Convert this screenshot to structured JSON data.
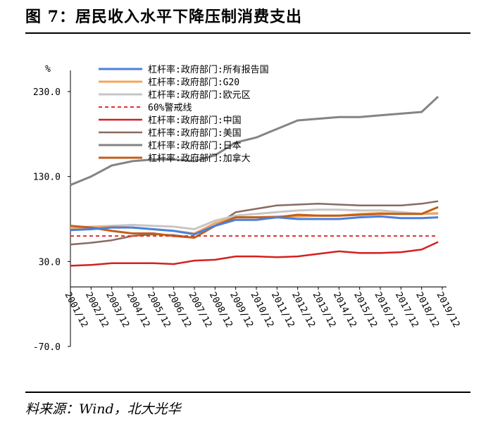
{
  "figure": {
    "title": "图 7：居民收入水平下降压制消费支出",
    "source": "料来源：Wind，北大光华"
  },
  "chart_data": {
    "type": "line",
    "ylabel": "%",
    "ylim": [
      -70,
      230
    ],
    "yticks": [
      "230.0",
      "130.0",
      "30.0",
      "-70.0"
    ],
    "ytick_values": [
      230,
      130,
      30,
      -70
    ],
    "xticks": [
      "2001/12",
      "2002/12",
      "2003/12",
      "2004/12",
      "2005/12",
      "2006/12",
      "2007/12",
      "2008/12",
      "2009/12",
      "2010/12",
      "2011/12",
      "2012/12",
      "2013/12",
      "2014/12",
      "2015/12",
      "2016/12",
      "2017/12",
      "2018/12",
      "2019/12"
    ],
    "x": [
      2001.95,
      2002.95,
      2003.95,
      2004.95,
      2005.95,
      2006.95,
      2007.95,
      2008.95,
      2009.95,
      2010.95,
      2011.95,
      2012.95,
      2013.95,
      2014.95,
      2015.95,
      2016.95,
      2017.95,
      2018.95,
      2019.95
    ],
    "grid": false,
    "legend_position": "top-left",
    "series": [
      {
        "name": "杠杆率:政府部门:所有报告国",
        "color": "#4a7fe0",
        "width": 3,
        "dash": "",
        "endx": 2019.75,
        "values": [
          67,
          68,
          70,
          70,
          68,
          66,
          62,
          72,
          79,
          79,
          82,
          80,
          80,
          80,
          82,
          83,
          81,
          81,
          82
        ]
      },
      {
        "name": "杠杆率:政府部门:G20",
        "color": "#f5a55a",
        "width": 3,
        "dash": "",
        "endx": 2019.75,
        "values": [
          68,
          70,
          71,
          70,
          68,
          66,
          63,
          75,
          82,
          82,
          83,
          83,
          84,
          84,
          86,
          87,
          86,
          86,
          87
        ]
      },
      {
        "name": "杠杆率:政府部门:欧元区",
        "color": "#c6c6c6",
        "width": 3,
        "dash": "",
        "endx": 2019.75,
        "values": [
          70,
          71,
          72,
          73,
          72,
          71,
          68,
          78,
          84,
          86,
          88,
          90,
          91,
          91,
          90,
          90,
          88,
          86,
          86
        ]
      },
      {
        "name": "60%警戒线",
        "color": "#e03030",
        "width": 2,
        "dash": "5,4",
        "endx": 2019.75,
        "values": [
          60,
          60,
          60,
          60,
          60,
          60,
          60,
          60,
          60,
          60,
          60,
          60,
          60,
          60,
          60,
          60,
          60,
          60,
          60
        ]
      },
      {
        "name": "杠杆率:政府部门:中国",
        "color": "#d42020",
        "width": 2.5,
        "dash": "",
        "endx": 2019.75,
        "values": [
          25,
          26,
          28,
          28,
          28,
          27,
          31,
          32,
          36,
          36,
          35,
          36,
          39,
          42,
          40,
          40,
          41,
          44,
          53
        ]
      },
      {
        "name": "杠杆率:政府部门:美国",
        "color": "#8a6a60",
        "width": 2.5,
        "dash": "",
        "endx": 2019.75,
        "values": [
          50,
          52,
          55,
          60,
          62,
          61,
          58,
          72,
          88,
          92,
          96,
          97,
          98,
          97,
          96,
          96,
          96,
          98,
          101
        ]
      },
      {
        "name": "杠杆率:政府部门:日本",
        "color": "#848484",
        "width": 3,
        "dash": "",
        "endx": 2019.75,
        "values": [
          120,
          130,
          143,
          148,
          150,
          150,
          148,
          155,
          170,
          176,
          186,
          196,
          198,
          200,
          200,
          202,
          204,
          206,
          224
        ]
      },
      {
        "name": "杠杆率:政府部门:加拿大",
        "color": "#c06018",
        "width": 3,
        "dash": "",
        "endx": 2019.75,
        "values": [
          72,
          70,
          66,
          63,
          63,
          60,
          58,
          72,
          82,
          82,
          82,
          85,
          84,
          84,
          85,
          86,
          86,
          86,
          94
        ]
      }
    ]
  }
}
